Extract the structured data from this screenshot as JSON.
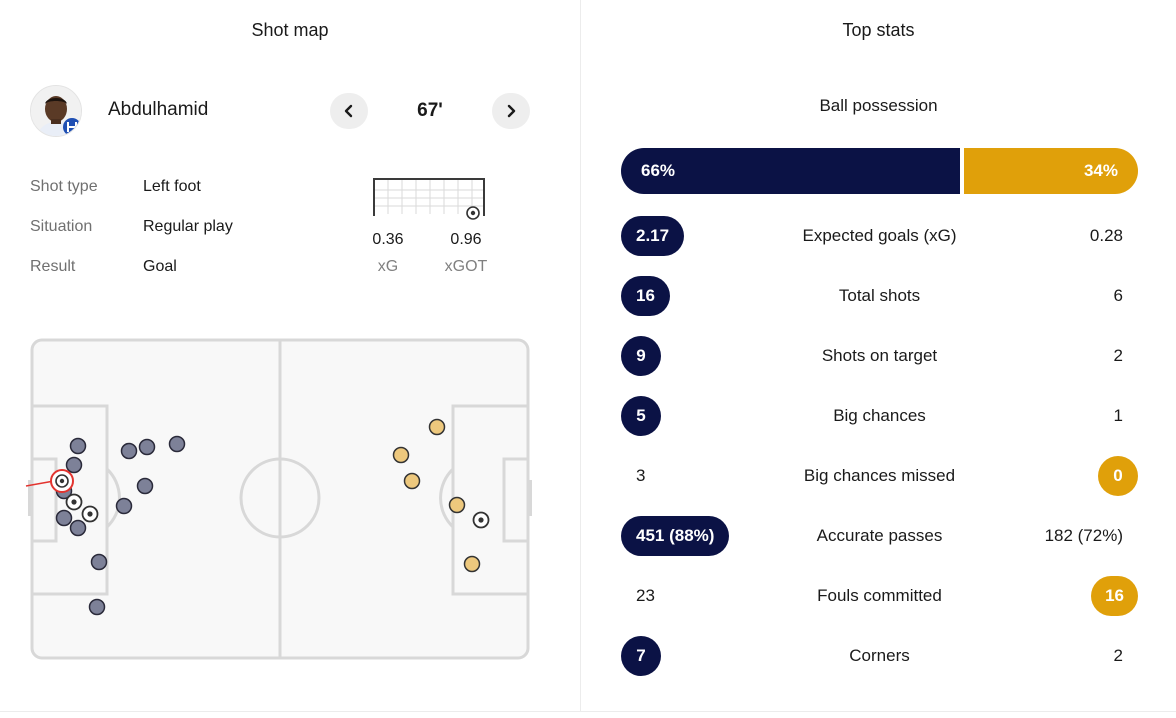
{
  "shot_map": {
    "title": "Shot map",
    "player": {
      "name": "Abdulhamid",
      "minute": "67'"
    },
    "details": [
      {
        "label": "Shot type",
        "value": "Left foot"
      },
      {
        "label": "Situation",
        "value": "Regular play"
      },
      {
        "label": "Result",
        "value": "Goal"
      }
    ],
    "xg": {
      "value": "0.36",
      "label": "xG"
    },
    "xgot": {
      "value": "0.96",
      "label": "xGOT"
    },
    "colors": {
      "home": "#7d8198",
      "away": "#edc87d",
      "selected": "#e3342f"
    }
  },
  "top_stats": {
    "title": "Top stats",
    "possession": {
      "label": "Ball possession",
      "home": "66%",
      "away": "34%",
      "home_value": 66,
      "away_value": 34
    },
    "rows": [
      {
        "label": "Expected goals (xG)",
        "home": "2.17",
        "away": "0.28",
        "highlight": "home"
      },
      {
        "label": "Total shots",
        "home": "16",
        "away": "6",
        "highlight": "home"
      },
      {
        "label": "Shots on target",
        "home": "9",
        "away": "2",
        "highlight": "home"
      },
      {
        "label": "Big chances",
        "home": "5",
        "away": "1",
        "highlight": "home"
      },
      {
        "label": "Big chances missed",
        "home": "3",
        "away": "0",
        "highlight": "away"
      },
      {
        "label": "Accurate passes",
        "home": "451 (88%)",
        "away": "182 (72%)",
        "highlight": "home"
      },
      {
        "label": "Fouls committed",
        "home": "23",
        "away": "16",
        "highlight": "away"
      },
      {
        "label": "Corners",
        "home": "7",
        "away": "2",
        "highlight": "home"
      }
    ],
    "colors": {
      "home": "#0b1245",
      "away": "#e0a00a"
    }
  }
}
